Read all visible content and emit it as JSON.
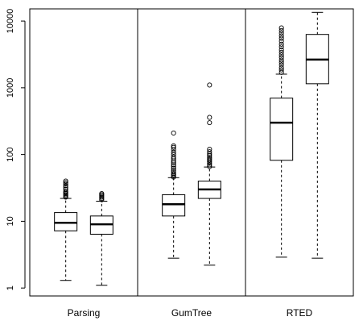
{
  "chart_data": {
    "type": "box",
    "title": "",
    "xlabel": "",
    "ylabel": "",
    "y_scale": "log",
    "ylim": [
      0.85,
      14000
    ],
    "y_ticks": [
      1,
      10,
      100,
      1000,
      10000
    ],
    "y_tick_labels": [
      "1",
      "10",
      "100",
      "1000",
      "10000"
    ],
    "groups": [
      {
        "name": "Parsing",
        "boxes": [
          {
            "min": 1.3,
            "q1": 7.2,
            "median": 9.5,
            "q3": 13.5,
            "max": 22,
            "outliers": [
              23,
              24,
              25,
              26,
              27,
              28,
              30,
              32,
              34,
              36,
              38,
              40
            ]
          },
          {
            "min": 1.1,
            "q1": 6.4,
            "median": 9.0,
            "q3": 12.0,
            "max": 20,
            "outliers": [
              21,
              22,
              23,
              24,
              25,
              26
            ]
          }
        ]
      },
      {
        "name": "GumTree",
        "boxes": [
          {
            "min": 2.8,
            "q1": 12,
            "median": 18,
            "q3": 25,
            "max": 45,
            "outliers": [
              46,
              48,
              50,
              52,
              55,
              58,
              62,
              66,
              70,
              75,
              80,
              86,
              92,
              100,
              108,
              118,
              128,
              135,
              210
            ]
          },
          {
            "min": 2.2,
            "q1": 22,
            "median": 30,
            "q3": 40,
            "max": 65,
            "outliers": [
              66,
              70,
              74,
              78,
              82,
              86,
              90,
              96,
              102,
              110,
              120,
              300,
              360,
              1100
            ]
          }
        ]
      },
      {
        "name": "RTED",
        "boxes": [
          {
            "min": 2.9,
            "q1": 82,
            "median": 300,
            "q3": 700,
            "max": 1600,
            "outliers": [
              1700,
              1850,
              2000,
              2200,
              2400,
              2600,
              2850,
              3100,
              3400,
              3700,
              4100,
              4500,
              5000,
              5500,
              6000,
              6600,
              7200,
              7900
            ]
          },
          {
            "min": 2.8,
            "q1": 1150,
            "median": 2650,
            "q3": 6300,
            "max": 13500,
            "outliers": []
          }
        ]
      }
    ],
    "separators_between_groups": true,
    "grid": false,
    "legend": "none",
    "colors": {
      "box_fill": "#ffffff",
      "stroke": "#000000"
    }
  }
}
